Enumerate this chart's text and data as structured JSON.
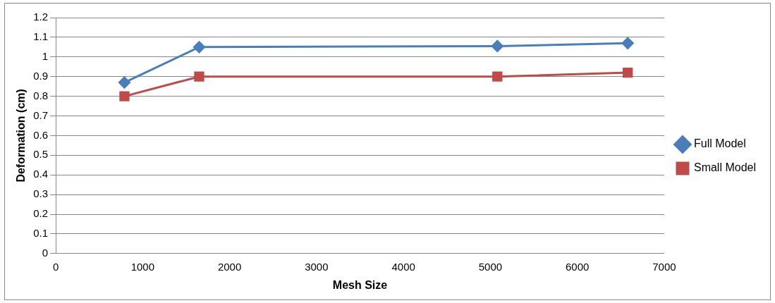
{
  "chart_data": {
    "type": "line",
    "xlabel": "Mesh Size",
    "ylabel": "Deformation (cm)",
    "xlim": [
      0,
      7000
    ],
    "xticks": [
      0,
      1000,
      2000,
      3000,
      4000,
      5000,
      6000,
      7000
    ],
    "ylim": [
      0,
      1.2
    ],
    "yticks": [
      0,
      0.1,
      0.2,
      0.3,
      0.4,
      0.5,
      0.6,
      0.7,
      0.8,
      0.9,
      1,
      1.1,
      1.2
    ],
    "grid": "y",
    "legend": "right",
    "line_style": "solid",
    "series": [
      {
        "name": "Full Model",
        "color": "#4a7ebb",
        "marker": "diamond",
        "x": [
          790,
          1650,
          5080,
          6580
        ],
        "values": [
          0.87,
          1.05,
          1.055,
          1.07
        ]
      },
      {
        "name": "Small Model",
        "color": "#be4b48",
        "marker": "square",
        "x": [
          790,
          1650,
          5080,
          6580
        ],
        "values": [
          0.8,
          0.9,
          0.9,
          0.92
        ]
      }
    ]
  }
}
